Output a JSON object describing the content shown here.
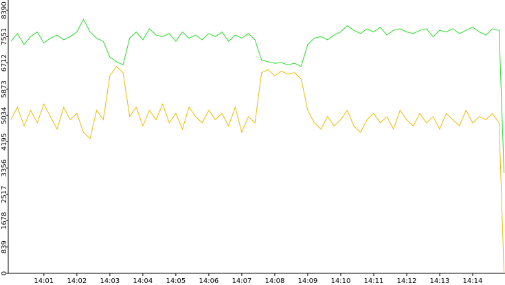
{
  "chart_data": {
    "type": "line",
    "x": [
      0,
      0.2,
      0.4,
      0.6,
      0.8,
      1.0,
      1.2,
      1.4,
      1.6,
      1.8,
      2.0,
      2.2,
      2.4,
      2.6,
      2.8,
      3.0,
      3.2,
      3.4,
      3.6,
      3.8,
      4.0,
      4.2,
      4.4,
      4.6,
      4.8,
      5.0,
      5.2,
      5.4,
      5.6,
      5.8,
      6.0,
      6.2,
      6.4,
      6.6,
      6.8,
      7.0,
      7.2,
      7.4,
      7.6,
      7.8,
      8.0,
      8.2,
      8.4,
      8.6,
      8.8,
      9.0,
      9.2,
      9.4,
      9.6,
      9.8,
      10.0,
      10.2,
      10.4,
      10.6,
      10.8,
      11.0,
      11.2,
      11.4,
      11.6,
      11.8,
      12.0,
      12.2,
      12.4,
      12.6,
      12.8,
      13.0,
      13.2,
      13.4,
      13.6,
      13.8,
      14.0,
      14.2,
      14.4,
      14.6,
      14.8,
      14.95
    ],
    "series": [
      {
        "color": "#22dd22",
        "values": [
          7400,
          7650,
          7300,
          7550,
          7700,
          7350,
          7500,
          7600,
          7450,
          7550,
          7700,
          8100,
          7700,
          7500,
          7400,
          6900,
          6750,
          6650,
          7500,
          7700,
          7450,
          7800,
          7600,
          7550,
          7650,
          7400,
          7700,
          7500,
          7600,
          7450,
          7650,
          7550,
          7700,
          7400,
          7600,
          7500,
          7650,
          7450,
          6800,
          6750,
          6700,
          6720,
          6650,
          6700,
          6600,
          7300,
          7500,
          7550,
          7450,
          7600,
          7700,
          7900,
          7750,
          7650,
          7800,
          7700,
          7850,
          7600,
          7750,
          7800,
          7700,
          7650,
          7750,
          7800,
          7550,
          7750,
          7700,
          7800,
          7650,
          7750,
          7850,
          7700,
          7600,
          7800,
          7750,
          3200
        ]
      },
      {
        "color": "#f0b800",
        "values": [
          4900,
          5300,
          4700,
          5200,
          4800,
          5400,
          5000,
          4600,
          5300,
          4900,
          5100,
          4500,
          4300,
          5200,
          4900,
          6300,
          6600,
          6400,
          5000,
          5300,
          4700,
          5200,
          4900,
          5400,
          4800,
          5100,
          4600,
          5300,
          5000,
          4800,
          5200,
          4900,
          5100,
          4700,
          5300,
          4500,
          5000,
          4800,
          6400,
          6500,
          6300,
          6450,
          6350,
          6400,
          6200,
          5200,
          4800,
          4600,
          5000,
          4700,
          4900,
          5200,
          4700,
          4500,
          4900,
          5100,
          4800,
          5000,
          4600,
          5200,
          4900,
          4700,
          5100,
          4800,
          5000,
          4600,
          5100,
          4900,
          4700,
          5200,
          4800,
          5000,
          4900,
          5100,
          4800,
          0
        ]
      }
    ],
    "xlim": [
      -0.08,
      14.98
    ],
    "xticks": [
      {
        "value": 1,
        "label": "14:01"
      },
      {
        "value": 2,
        "label": "14:02"
      },
      {
        "value": 3,
        "label": "14:03"
      },
      {
        "value": 4,
        "label": "14:04"
      },
      {
        "value": 5,
        "label": "14:05"
      },
      {
        "value": 6,
        "label": "14:06"
      },
      {
        "value": 7,
        "label": "14:07"
      },
      {
        "value": 8,
        "label": "14:08"
      },
      {
        "value": 9,
        "label": "14:09"
      },
      {
        "value": 10,
        "label": "14:10"
      },
      {
        "value": 11,
        "label": "14:11"
      },
      {
        "value": 12,
        "label": "14:12"
      },
      {
        "value": 13,
        "label": "14:13"
      },
      {
        "value": 14,
        "label": "14:14"
      }
    ],
    "ylim": [
      0,
      8390
    ],
    "yticks": [
      0,
      839,
      1678,
      2517,
      3356,
      4195,
      5034,
      5873,
      6712,
      7551,
      8390
    ]
  }
}
